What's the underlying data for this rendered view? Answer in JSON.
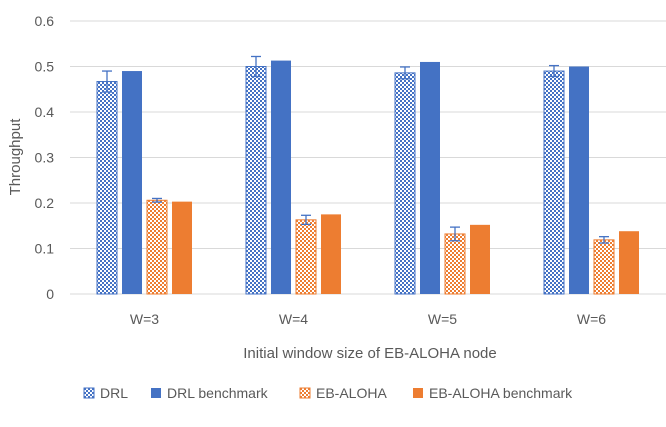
{
  "chart_data": {
    "type": "bar",
    "title": "",
    "xlabel": "Initial window size of EB-ALOHA node",
    "ylabel": "Throughput",
    "ylim": [
      0,
      0.6
    ],
    "yticks": [
      "0",
      "0.1",
      "0.2",
      "0.3",
      "0.4",
      "0.5",
      "0.6"
    ],
    "grid": true,
    "legend_position": "bottom",
    "categories": [
      "W=3",
      "W=4",
      "W=5",
      "W=6"
    ],
    "series": [
      {
        "name": "DRL",
        "values": [
          0.467,
          0.5,
          0.486,
          0.49
        ],
        "errors": [
          0.023,
          0.022,
          0.013,
          0.012
        ],
        "color": "#4472c4",
        "pattern": "checker"
      },
      {
        "name": "DRL benchmark",
        "values": [
          0.49,
          0.513,
          0.51,
          0.5
        ],
        "color": "#4472c4",
        "pattern": "solid"
      },
      {
        "name": "EB-ALOHA",
        "values": [
          0.206,
          0.163,
          0.132,
          0.119
        ],
        "errors": [
          0.004,
          0.01,
          0.015,
          0.007
        ],
        "color": "#ed7d31",
        "pattern": "checker"
      },
      {
        "name": "EB-ALOHA benchmark",
        "values": [
          0.203,
          0.175,
          0.152,
          0.138
        ],
        "color": "#ed7d31",
        "pattern": "solid"
      }
    ]
  }
}
